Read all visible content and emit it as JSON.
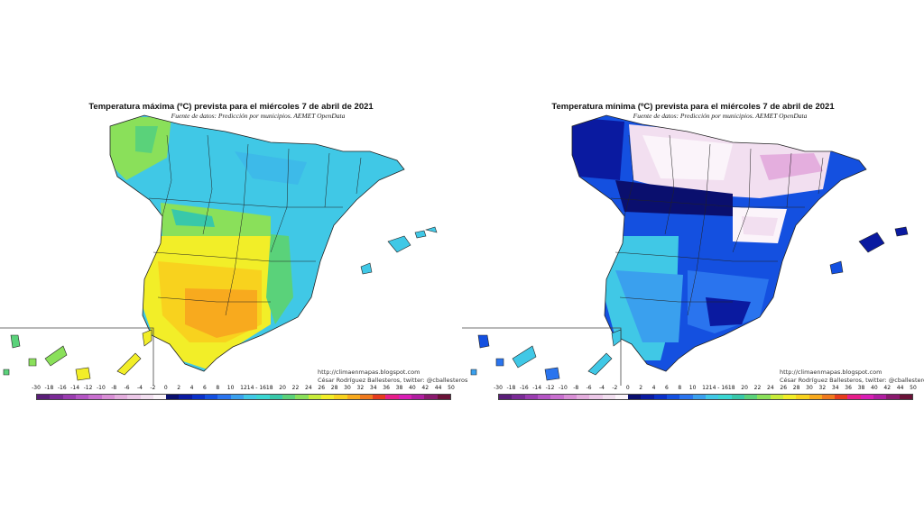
{
  "left": {
    "title": "Temperatura máxima (ºC) prevista para el miércoles 7 de abril de 2021",
    "subtitle": "Fuente de datos: Predicción por municipios. AEMET OpenData",
    "credit_line1": "http://climaenmapas.blogspot.com",
    "credit_line2": "César Rodríguez Ballesteros, twitter: @cballesteros"
  },
  "right": {
    "title": "Temperatura mínima (ºC) prevista para el miércoles 7 de abril de 2021",
    "subtitle": "Fuente de datos: Predicción por municipios. AEMET OpenData",
    "credit_line1": "http://climaenmapas.blogspot.com",
    "credit_line2": "César Rodríguez Ballesteros, twitter: @cballesteros"
  },
  "scale": {
    "labels": [
      "-30",
      "-18",
      "-16",
      "-14",
      "-12",
      "-10",
      "-8",
      "-6",
      "-4",
      "-2",
      "0",
      "2",
      "4",
      "6",
      "8",
      "10",
      "12",
      "14 - 16",
      "18",
      "20",
      "22",
      "24",
      "26",
      "28",
      "30",
      "32",
      "34",
      "36",
      "38",
      "40",
      "42",
      "44",
      "50"
    ],
    "colors": [
      "#5a1e78",
      "#7a2a96",
      "#9a3cb0",
      "#b455c4",
      "#c86fcf",
      "#d98fd6",
      "#e4aede",
      "#ecc8e8",
      "#f2dff0",
      "#fbf4fa",
      "#0a0f6e",
      "#0a1aa0",
      "#0a30c8",
      "#1450e0",
      "#2a74ee",
      "#3aa0ee",
      "#40c8e6",
      "#3ad6d2",
      "#38c8aa",
      "#5ad27a",
      "#8ae05a",
      "#c8ec3a",
      "#f2ee28",
      "#f8d21e",
      "#f8aa1e",
      "#f07a1e",
      "#e63c1e",
      "#e61e8a",
      "#d81eb4",
      "#b01ea0",
      "#8a1a6e",
      "#6a1238"
    ]
  },
  "legend_colors": {
    "max_map": [
      "#3ad6d2",
      "#38c8aa",
      "#8ae05a",
      "#c8ec3a",
      "#f2ee28",
      "#f8d21e",
      "#f8aa1e"
    ],
    "min_map": [
      "#0a0f6e",
      "#0a1aa0",
      "#1450e0",
      "#2a74ee",
      "#40c8e6",
      "#f2dff0",
      "#fbf4fa"
    ]
  }
}
